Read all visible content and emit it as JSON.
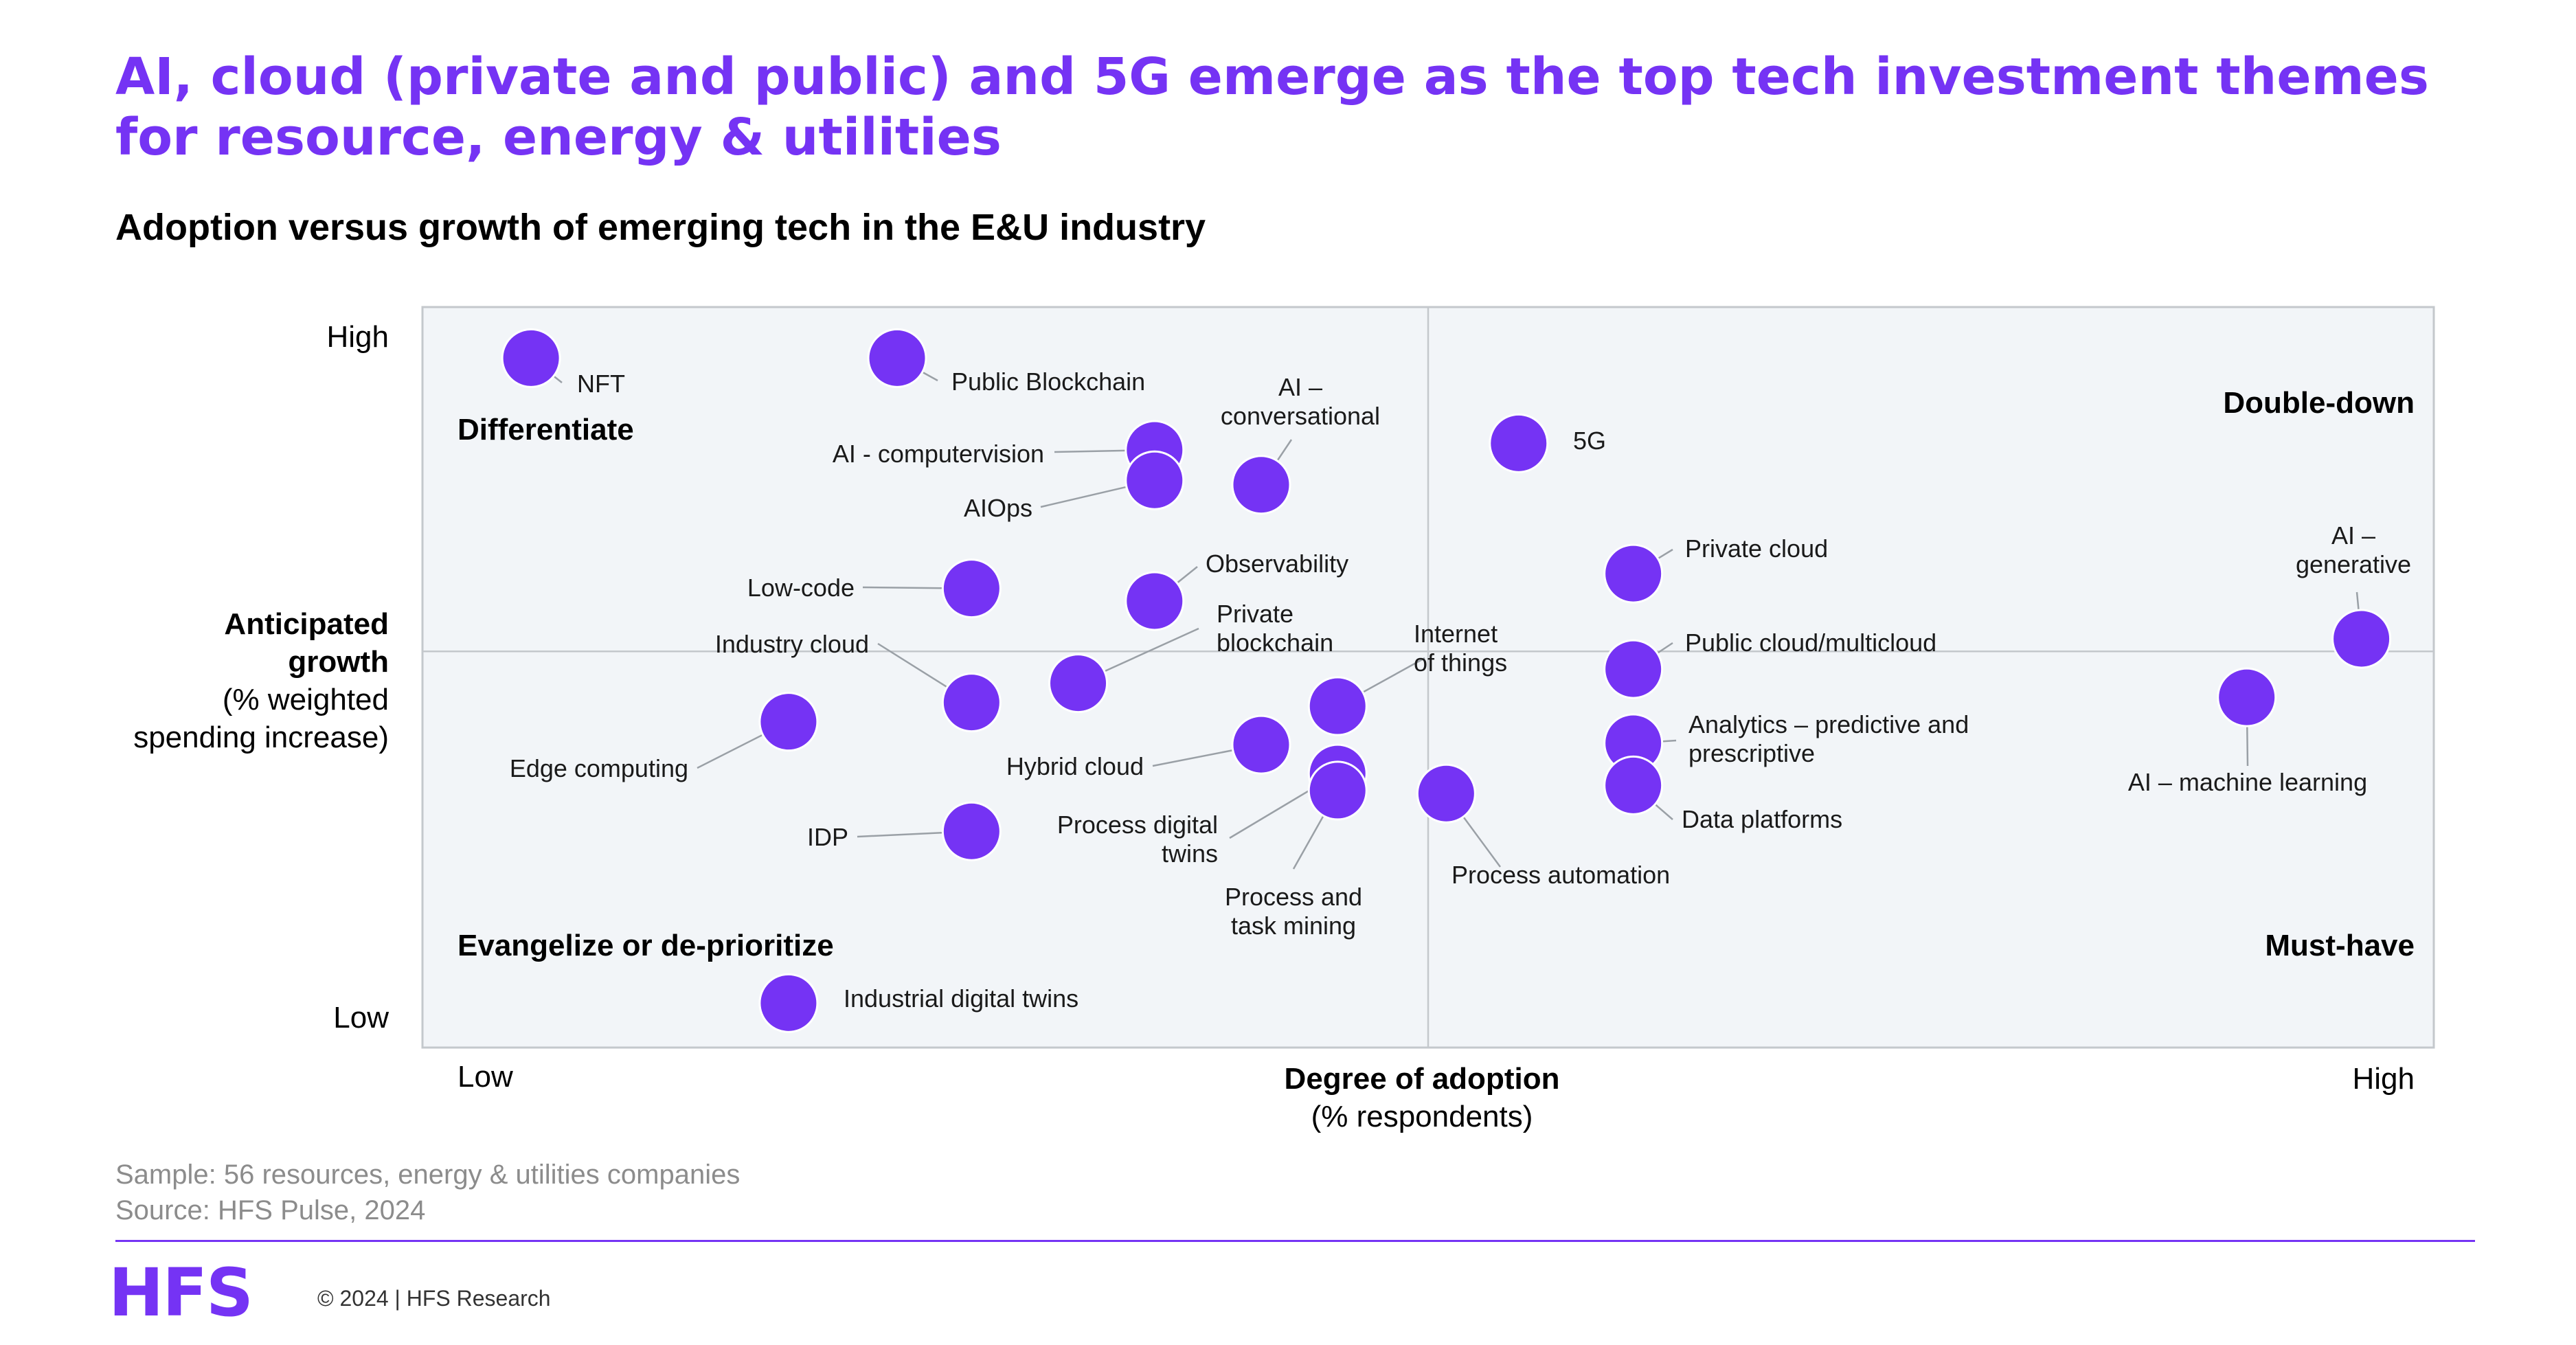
{
  "header": {
    "title": "AI, cloud (private and public) and 5G emerge as the top tech investment themes for resource, energy & utilities",
    "subtitle": "Adoption versus growth of emerging tech in the E&U industry"
  },
  "chart_data": {
    "type": "scatter",
    "xlabel": "Degree of adoption",
    "xlabel_sub": "(% respondents)",
    "ylabel_lines": [
      "Anticipated",
      "growth"
    ],
    "ylabel_sub_lines": [
      "(% weighted",
      "spending increase)"
    ],
    "x_low": "Low",
    "x_high": "High",
    "y_low": "Low",
    "y_high": "High",
    "xlim": [
      0,
      100
    ],
    "ylim": [
      0,
      100
    ],
    "midpoint": {
      "x": 50,
      "y": 53.5
    },
    "quadrants": {
      "top_left": "Differentiate",
      "top_right": "Double-down",
      "bottom_left": "Evangelize or de-prioritize",
      "bottom_right": "Must-have"
    },
    "point_color": "#7533f4",
    "points": [
      {
        "label": "NFT",
        "x": 5.4,
        "y": 93.1
      },
      {
        "label": "Public Blockchain",
        "x": 23.6,
        "y": 93.1
      },
      {
        "label": "AI - computervision",
        "x": 36.4,
        "y": 80.7
      },
      {
        "label": "AIOps",
        "x": 36.4,
        "y": 76.6
      },
      {
        "label": "AI – conversational",
        "x": 41.7,
        "y": 76.0
      },
      {
        "label": "5G",
        "x": 54.5,
        "y": 81.6
      },
      {
        "label": "Low-code",
        "x": 27.3,
        "y": 62.0
      },
      {
        "label": "Observability",
        "x": 36.4,
        "y": 60.3
      },
      {
        "label": "Private cloud",
        "x": 60.2,
        "y": 64.0
      },
      {
        "label": "AI – generative",
        "x": 96.4,
        "y": 55.2
      },
      {
        "label": "Industry cloud",
        "x": 27.3,
        "y": 46.6
      },
      {
        "label": "Private blockchain",
        "x": 32.6,
        "y": 49.2
      },
      {
        "label": "Internet of things",
        "x": 45.5,
        "y": 46.1
      },
      {
        "label": "Public cloud/multicloud",
        "x": 60.2,
        "y": 51.1
      },
      {
        "label": "AI – machine learning",
        "x": 90.7,
        "y": 47.3
      },
      {
        "label": "Edge computing",
        "x": 18.2,
        "y": 44.0
      },
      {
        "label": "Hybrid cloud",
        "x": 41.7,
        "y": 40.9
      },
      {
        "label": "Analytics – predictive and prescriptive",
        "x": 60.2,
        "y": 41.1
      },
      {
        "label": "Process digital twins",
        "x": 45.5,
        "y": 37.0
      },
      {
        "label": "Process and task mining",
        "x": 45.5,
        "y": 34.7
      },
      {
        "label": "Process automation",
        "x": 50.9,
        "y": 34.3
      },
      {
        "label": "Data platforms",
        "x": 60.2,
        "y": 35.4
      },
      {
        "label": "IDP",
        "x": 27.3,
        "y": 29.2
      },
      {
        "label": "Industrial digital twins",
        "x": 18.2,
        "y": 6.0
      }
    ]
  },
  "footer": {
    "sample": "Sample: 56 resources, energy & utilities companies",
    "source": "Source: HFS Pulse, 2024",
    "logo": "HFS",
    "copyright": "© 2024 | HFS Research"
  }
}
